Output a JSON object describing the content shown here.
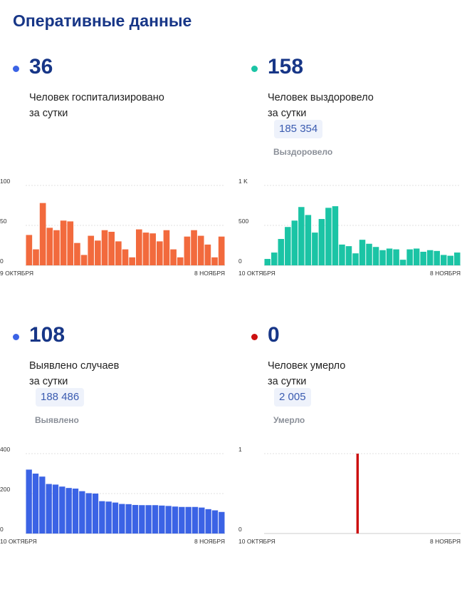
{
  "page": {
    "title": "Оперативные данные"
  },
  "cards": [
    {
      "key": "hosp",
      "value": "36",
      "label_line1": "Человек госпитализировано",
      "label_line2": "за сутки",
      "dot_color": "#3b63e5",
      "total": "",
      "total_caption": ""
    },
    {
      "key": "recovered",
      "value": "158",
      "label_line1": "Человек выздоровело",
      "label_line2": "за сутки",
      "dot_color": "#1bc4a5",
      "total": "185 354",
      "total_caption": "Выздоровело"
    },
    {
      "key": "cases",
      "value": "108",
      "label_line1": "Выявлено случаев",
      "label_line2": "за сутки",
      "dot_color": "#3b63e5",
      "total": "188 486",
      "total_caption": "Выявлено"
    },
    {
      "key": "deaths",
      "value": "0",
      "label_line1": "Человек умерло",
      "label_line2": "за сутки",
      "dot_color": "#cc1010",
      "total": "2 005",
      "total_caption": "Умерло"
    }
  ],
  "chart_data": [
    {
      "type": "bar",
      "title": "",
      "color": "#f26a3d",
      "x_start": "9 ОКТЯБРЯ",
      "x_end": "8 НОЯБРЯ",
      "ylim": [
        0,
        100
      ],
      "yticks": [
        "0",
        "50",
        "100"
      ],
      "grid": true,
      "values": [
        38,
        20,
        78,
        47,
        44,
        56,
        55,
        28,
        13,
        37,
        31,
        44,
        42,
        30,
        20,
        10,
        45,
        41,
        40,
        30,
        44,
        20,
        10,
        36,
        44,
        37,
        26,
        10,
        36
      ]
    },
    {
      "type": "bar",
      "title": "",
      "color": "#1bc4a5",
      "x_start": "10 ОКТЯБРЯ",
      "x_end": "8 НОЯБРЯ",
      "ylim": [
        0,
        1000
      ],
      "yticks": [
        "0",
        "500",
        "1 K"
      ],
      "grid": true,
      "values": [
        80,
        160,
        330,
        480,
        560,
        730,
        630,
        410,
        580,
        720,
        740,
        260,
        240,
        150,
        320,
        270,
        230,
        190,
        210,
        200,
        70,
        200,
        210,
        170,
        190,
        180,
        130,
        120,
        160
      ]
    },
    {
      "type": "bar",
      "title": "",
      "color": "#3b63e5",
      "x_start": "10 ОКТЯБРЯ",
      "x_end": "8 НОЯБРЯ",
      "ylim": [
        0,
        400
      ],
      "yticks": [
        "0",
        "200",
        "400"
      ],
      "grid": true,
      "values": [
        320,
        300,
        285,
        248,
        245,
        235,
        228,
        225,
        212,
        202,
        200,
        162,
        160,
        155,
        148,
        147,
        143,
        142,
        142,
        142,
        140,
        138,
        135,
        133,
        133,
        133,
        130,
        122,
        116,
        108
      ]
    },
    {
      "type": "bar",
      "title": "",
      "color": "#cc1010",
      "x_start": "10 ОКТЯБРЯ",
      "x_end": "8 НОЯБРЯ",
      "ylim": [
        0,
        1
      ],
      "yticks": [
        "0",
        "1"
      ],
      "grid": true,
      "values": [
        0,
        0,
        0,
        0,
        0,
        0,
        0,
        0,
        0,
        0,
        0,
        0,
        0,
        0,
        0,
        0,
        0,
        0,
        0,
        0,
        0,
        0,
        0,
        0,
        0,
        0,
        0,
        0,
        0,
        1,
        0,
        0,
        0,
        0,
        0,
        0,
        0,
        0,
        0,
        0,
        0,
        0,
        0,
        0,
        0,
        0,
        0,
        0,
        0,
        0,
        0,
        0,
        0,
        0,
        0,
        0,
        0,
        0,
        0,
        0,
        0,
        0
      ]
    }
  ]
}
